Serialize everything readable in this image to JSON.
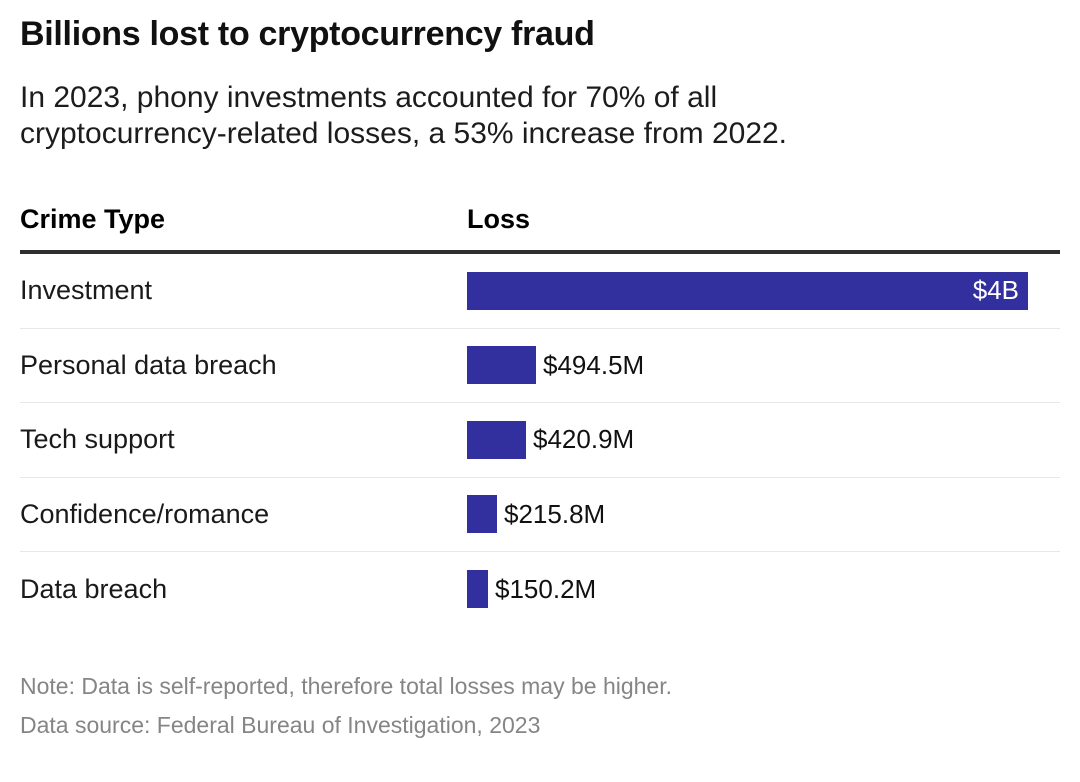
{
  "header": {
    "title": "Billions lost to cryptocurrency fraud",
    "subtitle": "In 2023, phony investments accounted for 70% of all cryptocurrency-related losses, a 53% increase from 2022."
  },
  "table": {
    "columns": [
      "Crime Type",
      "Loss"
    ]
  },
  "chart_data": {
    "type": "bar",
    "orientation": "horizontal",
    "title": "Billions lost to cryptocurrency fraud",
    "categories": [
      "Investment",
      "Personal data breach",
      "Tech support",
      "Confidence/romance",
      "Data breach"
    ],
    "values": [
      4000,
      494.5,
      420.9,
      215.8,
      150.2
    ],
    "value_labels": [
      "$4B",
      "$494.5M",
      "$420.9M",
      "$215.8M",
      "$150.2M"
    ],
    "unit": "USD millions",
    "xlim": [
      0,
      4000
    ],
    "bar_color": "#322f9e",
    "grid": false,
    "legend": false
  },
  "footer": {
    "note": "Note: Data is self-reported, therefore total losses may be higher.",
    "source": "Data source: Federal Bureau of Investigation, 2023"
  }
}
